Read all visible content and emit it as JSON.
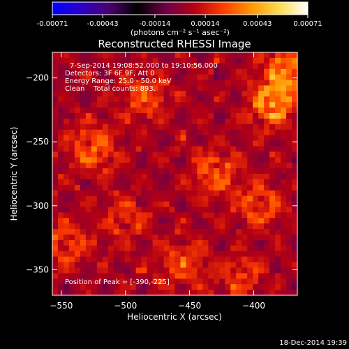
{
  "chart_data": {
    "type": "heatmap",
    "title": "Reconstructed RHESSI Image",
    "xlabel": "Heliocentric X (arcsec)",
    "ylabel": "Heliocentric Y (arcsec)",
    "xlim": [
      -557,
      -366
    ],
    "ylim": [
      -370,
      -180
    ],
    "xticks": [
      -550,
      -500,
      -450,
      -400
    ],
    "yticks": [
      -350,
      -300,
      -250,
      -200
    ],
    "grid": false,
    "colorbar": {
      "min": -0.00071,
      "max": 0.00071,
      "ticks": [
        -0.00071,
        -0.00043,
        -0.00014,
        0.00014,
        0.00043,
        0.00071
      ],
      "tick_labels": [
        "-0.00071",
        "-0.00043",
        "-0.00014",
        "0.00014",
        "0.00043",
        "0.00071"
      ],
      "unit_label": "(photons cm⁻² s⁻¹ asec⁻²)",
      "colors": [
        "#0000ff",
        "#2a00c8",
        "#4b006e",
        "#000000",
        "#6e0046",
        "#b40014",
        "#ff3c00",
        "#ff9600",
        "#ffdc50",
        "#ffffff"
      ]
    },
    "info_lines": [
      "7-Sep-2014 19:08:52.000 to 19:10:56.000",
      "Detectors: 3F 6F 9F, Att 0",
      "Energy Range: 25.0 - 50.0 keV",
      "Clean    Total counts: 893."
    ],
    "peak_label": "Position of Peak = [-390,-225]",
    "hotspots": [
      {
        "x": -385,
        "y": -220,
        "strength": 1.0
      },
      {
        "x": -375,
        "y": -195,
        "strength": 0.85
      },
      {
        "x": -525,
        "y": -255,
        "strength": 0.75
      },
      {
        "x": -485,
        "y": -215,
        "strength": 0.6
      },
      {
        "x": -430,
        "y": -275,
        "strength": 0.7
      },
      {
        "x": -395,
        "y": -300,
        "strength": 0.65
      },
      {
        "x": -545,
        "y": -330,
        "strength": 0.55
      },
      {
        "x": -455,
        "y": -345,
        "strength": 0.6
      },
      {
        "x": -500,
        "y": -310,
        "strength": 0.45
      },
      {
        "x": -410,
        "y": -355,
        "strength": 0.5
      }
    ]
  },
  "footer": {
    "timestamp": "18-Dec-2014 19:39"
  }
}
